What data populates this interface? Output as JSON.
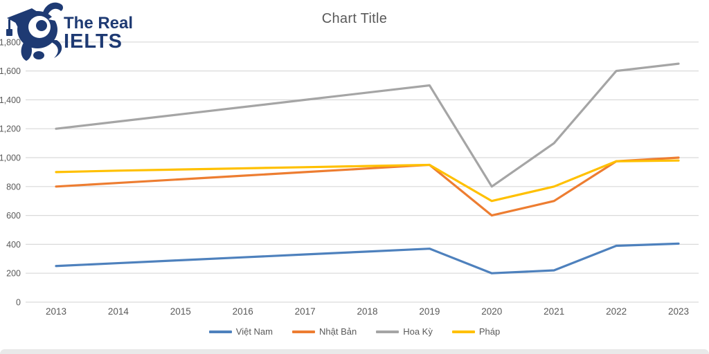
{
  "page": {
    "background": "#ffffff",
    "bottom_strip_color": "#e9e9e9"
  },
  "logo": {
    "line1": "The Real",
    "line2": "IELTS",
    "color": "#1e3a73"
  },
  "chart_data": {
    "type": "line",
    "title": "Chart Title",
    "x": [
      2013,
      2014,
      2015,
      2016,
      2017,
      2018,
      2019,
      2020,
      2021,
      2022,
      2023
    ],
    "series": [
      {
        "name": "Việt Nam",
        "color": "#4e81bd",
        "values": [
          250,
          270,
          290,
          310,
          330,
          350,
          370,
          200,
          220,
          390,
          405
        ]
      },
      {
        "name": "Nhật Bản",
        "color": "#ed7d31",
        "values": [
          800,
          825,
          850,
          875,
          900,
          925,
          950,
          600,
          700,
          975,
          1000
        ]
      },
      {
        "name": "Hoa Kỳ",
        "color": "#a5a5a5",
        "values": [
          1200,
          1250,
          1300,
          1350,
          1400,
          1450,
          1500,
          800,
          1100,
          1600,
          1650
        ]
      },
      {
        "name": "Pháp",
        "color": "#ffc000",
        "values": [
          900,
          910,
          918,
          926,
          934,
          942,
          950,
          700,
          800,
          975,
          980
        ]
      }
    ],
    "ylim": [
      0,
      1800
    ],
    "ytick_step": 200,
    "ytick_labels": [
      "0",
      "200",
      "400",
      "600",
      "800",
      "1,000",
      "1,200",
      "1,400",
      "1,600",
      "1,800"
    ],
    "grid": true,
    "gridline_color": "#d9d9d9",
    "axis_text_color": "#595959",
    "title_color": "#595959",
    "legend_position": "bottom",
    "xlabel": "",
    "ylabel": ""
  }
}
